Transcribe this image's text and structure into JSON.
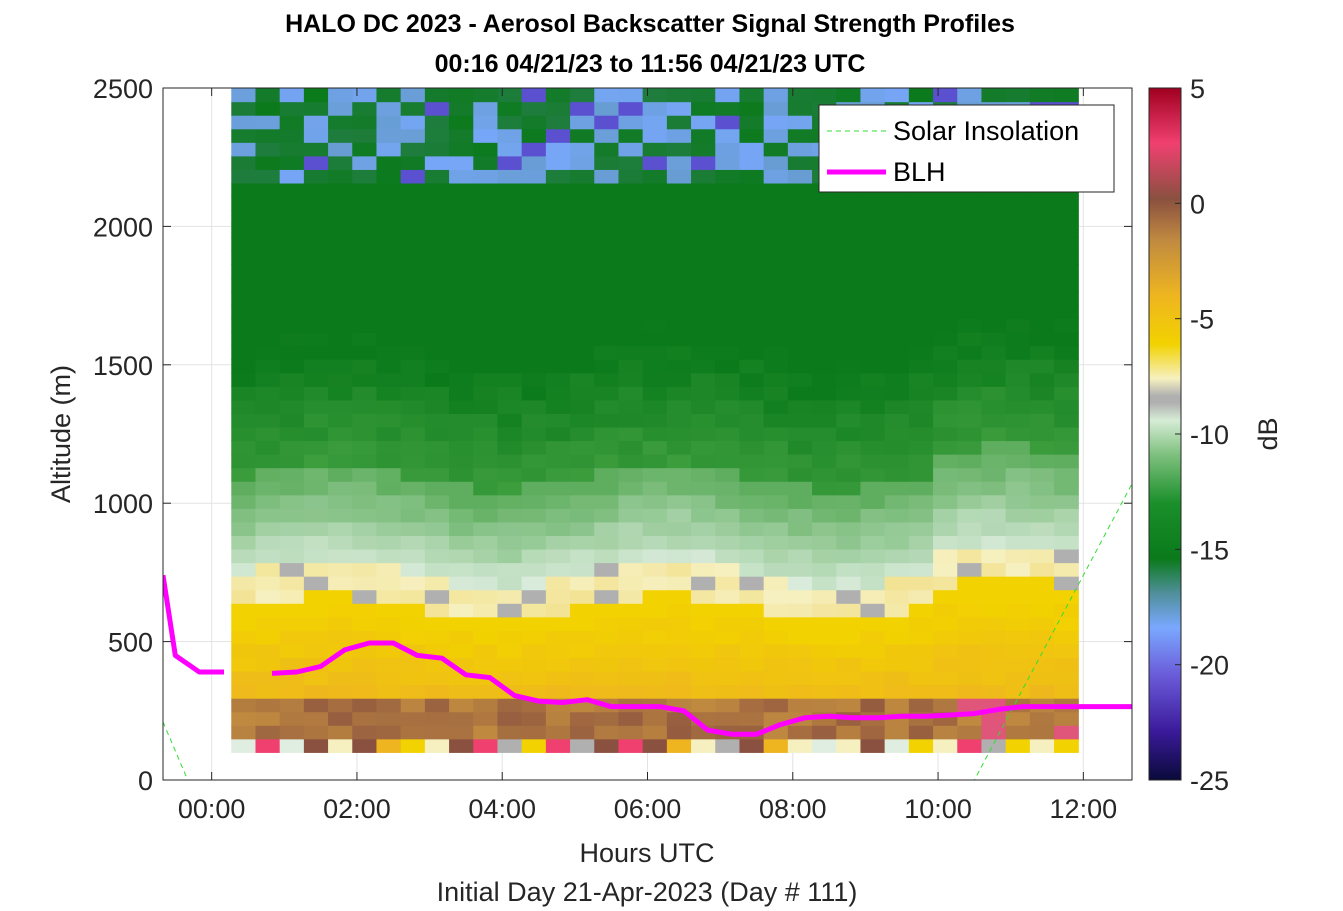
{
  "title_line1": "HALO DC 2023 - Aerosol Backscatter Signal Strength Profiles",
  "title_line2": "00:16 04/21/23 to 11:56 04/21/23  UTC",
  "chart_data": {
    "type": "heatmap",
    "xlabel": "Hours UTC",
    "xlabel2": "Initial Day 21-Apr-2023 (Day # 111)",
    "ylabel": "Altitude (m)",
    "colorbar_label": "dB",
    "x_range_hours": [
      -0.67,
      12.67
    ],
    "y_range": [
      0,
      2500
    ],
    "x_ticks": [
      {
        "hour": 0,
        "label": "00:00"
      },
      {
        "hour": 2,
        "label": "02:00"
      },
      {
        "hour": 4,
        "label": "04:00"
      },
      {
        "hour": 6,
        "label": "06:00"
      },
      {
        "hour": 8,
        "label": "08:00"
      },
      {
        "hour": 10,
        "label": "10:00"
      },
      {
        "hour": 12,
        "label": "12:00"
      }
    ],
    "y_ticks": [
      0,
      500,
      1000,
      1500,
      2000,
      2500
    ],
    "colorbar_range": [
      -25,
      5
    ],
    "colorbar_ticks": [
      5,
      0,
      -5,
      -10,
      -15,
      -20,
      -25
    ],
    "grid": true,
    "legend_position": "top-right",
    "legend": [
      {
        "name": "Solar Insolation",
        "color": "#33dd33",
        "style": "dashed"
      },
      {
        "name": "BLH",
        "color": "#ff00ff",
        "style": "solid"
      }
    ],
    "heatmap_time_range_hours": [
      0.27,
      11.93
    ],
    "heatmap_altitude_range_m": [
      100,
      2500
    ],
    "series": [
      {
        "name": "BLH",
        "x_hours": [
          -0.67,
          -0.5,
          -0.17,
          0.17,
          0.5,
          0.83,
          1.17,
          1.5,
          1.83,
          2.17,
          2.5,
          2.83,
          3.17,
          3.5,
          3.83,
          4.17,
          4.5,
          4.83,
          5.17,
          5.5,
          5.83,
          6.17,
          6.5,
          6.83,
          7.17,
          7.5,
          7.83,
          8.17,
          8.5,
          8.83,
          9.17,
          9.5,
          9.83,
          10.17,
          10.5,
          10.83,
          11.17,
          11.5,
          11.83,
          12.17,
          12.67
        ],
        "y": [
          740,
          450,
          390,
          390,
          null,
          385,
          390,
          410,
          470,
          495,
          495,
          450,
          440,
          380,
          370,
          305,
          285,
          280,
          290,
          265,
          265,
          265,
          250,
          180,
          165,
          165,
          200,
          225,
          230,
          225,
          225,
          230,
          230,
          235,
          240,
          255,
          265,
          265,
          265,
          265,
          265
        ]
      },
      {
        "name": "Solar Insolation",
        "x_hours": [
          -0.67,
          -0.33,
          10.5,
          12.67
        ],
        "y": [
          210,
          0,
          0,
          1070
        ]
      }
    ]
  }
}
